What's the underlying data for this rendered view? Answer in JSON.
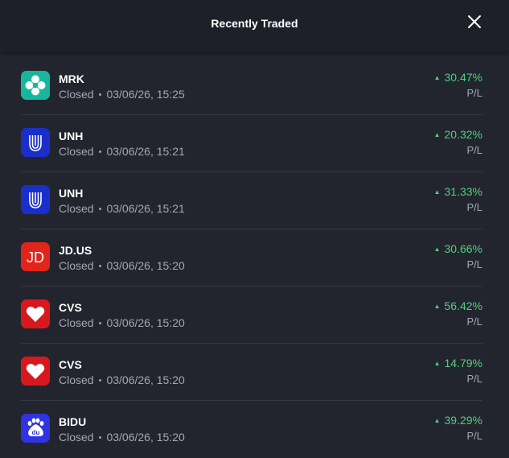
{
  "header": {
    "title": "Recently Traded"
  },
  "trades": [
    {
      "ticker": "MRK",
      "status": "Closed",
      "datetime": "03/06/26, 15:25",
      "change": "30.47%",
      "label": "P/L",
      "logo": "merck-icon"
    },
    {
      "ticker": "UNH",
      "status": "Closed",
      "datetime": "03/06/26, 15:21",
      "change": "20.32%",
      "label": "P/L",
      "logo": "unitedhealth-icon"
    },
    {
      "ticker": "UNH",
      "status": "Closed",
      "datetime": "03/06/26, 15:21",
      "change": "31.33%",
      "label": "P/L",
      "logo": "unitedhealth-icon"
    },
    {
      "ticker": "JD.US",
      "status": "Closed",
      "datetime": "03/06/26, 15:20",
      "change": "30.66%",
      "label": "P/L",
      "logo": "jd-icon",
      "logo_text": "JD"
    },
    {
      "ticker": "CVS",
      "status": "Closed",
      "datetime": "03/06/26, 15:20",
      "change": "56.42%",
      "label": "P/L",
      "logo": "cvs-heart-icon"
    },
    {
      "ticker": "CVS",
      "status": "Closed",
      "datetime": "03/06/26, 15:20",
      "change": "14.79%",
      "label": "P/L",
      "logo": "cvs-heart-icon"
    },
    {
      "ticker": "BIDU",
      "status": "Closed",
      "datetime": "03/06/26, 15:20",
      "change": "39.29%",
      "label": "P/L",
      "logo": "baidu-paw-icon",
      "logo_text": "du"
    }
  ],
  "colors": {
    "background": "#22252e",
    "header": "#1d2028",
    "positive": "#4fd17e",
    "muted": "#a3a7b2"
  }
}
